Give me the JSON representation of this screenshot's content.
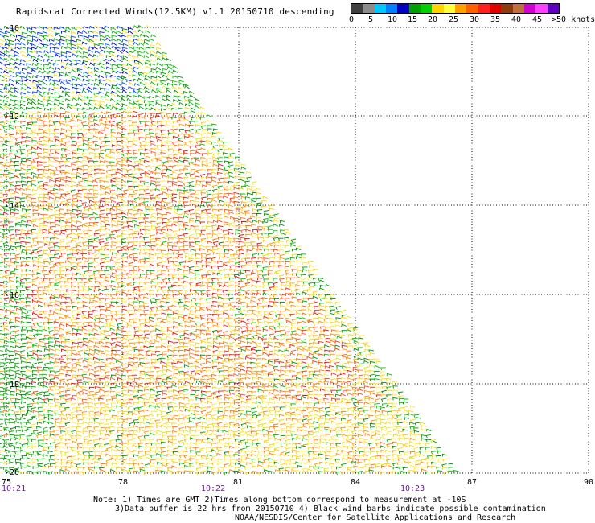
{
  "title": "Rapidscat Corrected Winds(12.5KM) v1.1 20150710 descending",
  "legend": {
    "colors": [
      "#404040",
      "#8c8c8c",
      "#00c8ff",
      "#0080ff",
      "#0000c0",
      "#00a000",
      "#00d000",
      "#ffd400",
      "#ffff40",
      "#ffa000",
      "#ff6000",
      "#ff2020",
      "#e00000",
      "#8c3c10",
      "#c07040",
      "#d000d0",
      "#ff40ff",
      "#6000c0"
    ],
    "labels": [
      "0",
      "5",
      "10",
      "15",
      "20",
      "25",
      "30",
      "35",
      "40",
      "45",
      ">50 knots"
    ]
  },
  "axes": {
    "x_ticks": [
      "75",
      "78",
      "81",
      "84",
      "87",
      "90"
    ],
    "y_ticks": [
      "-10",
      "-12",
      "-14",
      "-16",
      "-18",
      "-20"
    ],
    "time_labels": [
      "10:21",
      "10:22",
      "10:23"
    ]
  },
  "notes": {
    "line1": "Note: 1) Times are GMT 2)Times along bottom correspond to measurement at -10S",
    "line2": "3)Data buffer is 22 hrs from 20150710 4) Black wind barbs indicate possible contamination",
    "line3": "NOAA/NESDIS/Center for Satellite Applications and Research"
  }
}
